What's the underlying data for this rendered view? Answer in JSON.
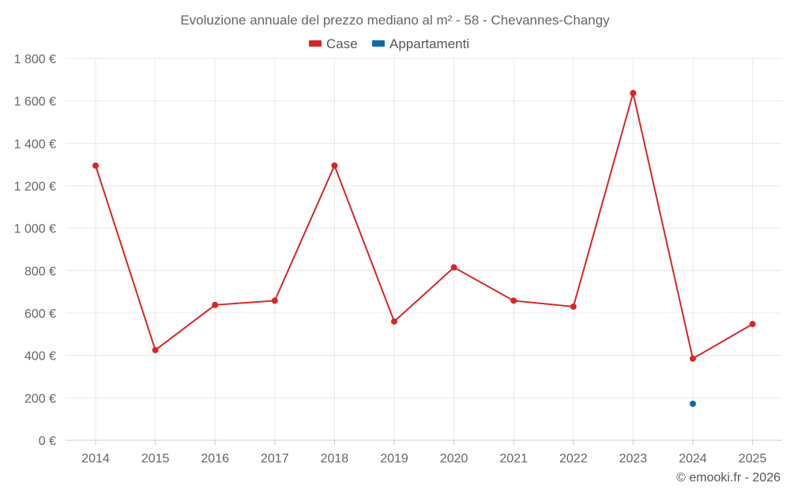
{
  "chart_data": {
    "type": "line",
    "title": "Evoluzione annuale del prezzo mediano al m² - 58 - Chevannes-Changy",
    "categories": [
      "2014",
      "2015",
      "2016",
      "2017",
      "2018",
      "2019",
      "2020",
      "2021",
      "2022",
      "2023",
      "2024",
      "2025"
    ],
    "y_ticks": [
      0,
      200,
      400,
      600,
      800,
      1000,
      1200,
      1400,
      1600,
      1800
    ],
    "y_tick_labels": [
      "0 €",
      "200 €",
      "400 €",
      "600 €",
      "800 €",
      "1 000 €",
      "1 200 €",
      "1 400 €",
      "1 600 €",
      "1 800 €"
    ],
    "ylim": [
      0,
      1800
    ],
    "xlabel": "",
    "ylabel": "",
    "grid": true,
    "legend_position": "top-center",
    "series": [
      {
        "name": "Case",
        "color": "#d62728",
        "values": [
          1295,
          425,
          638,
          658,
          1295,
          560,
          815,
          658,
          630,
          1637,
          385,
          548
        ]
      },
      {
        "name": "Appartamenti",
        "color": "#0f6aa6",
        "values": [
          null,
          null,
          null,
          null,
          null,
          null,
          null,
          null,
          null,
          null,
          172,
          null
        ]
      }
    ]
  },
  "credit": "© emooki.fr - 2026"
}
